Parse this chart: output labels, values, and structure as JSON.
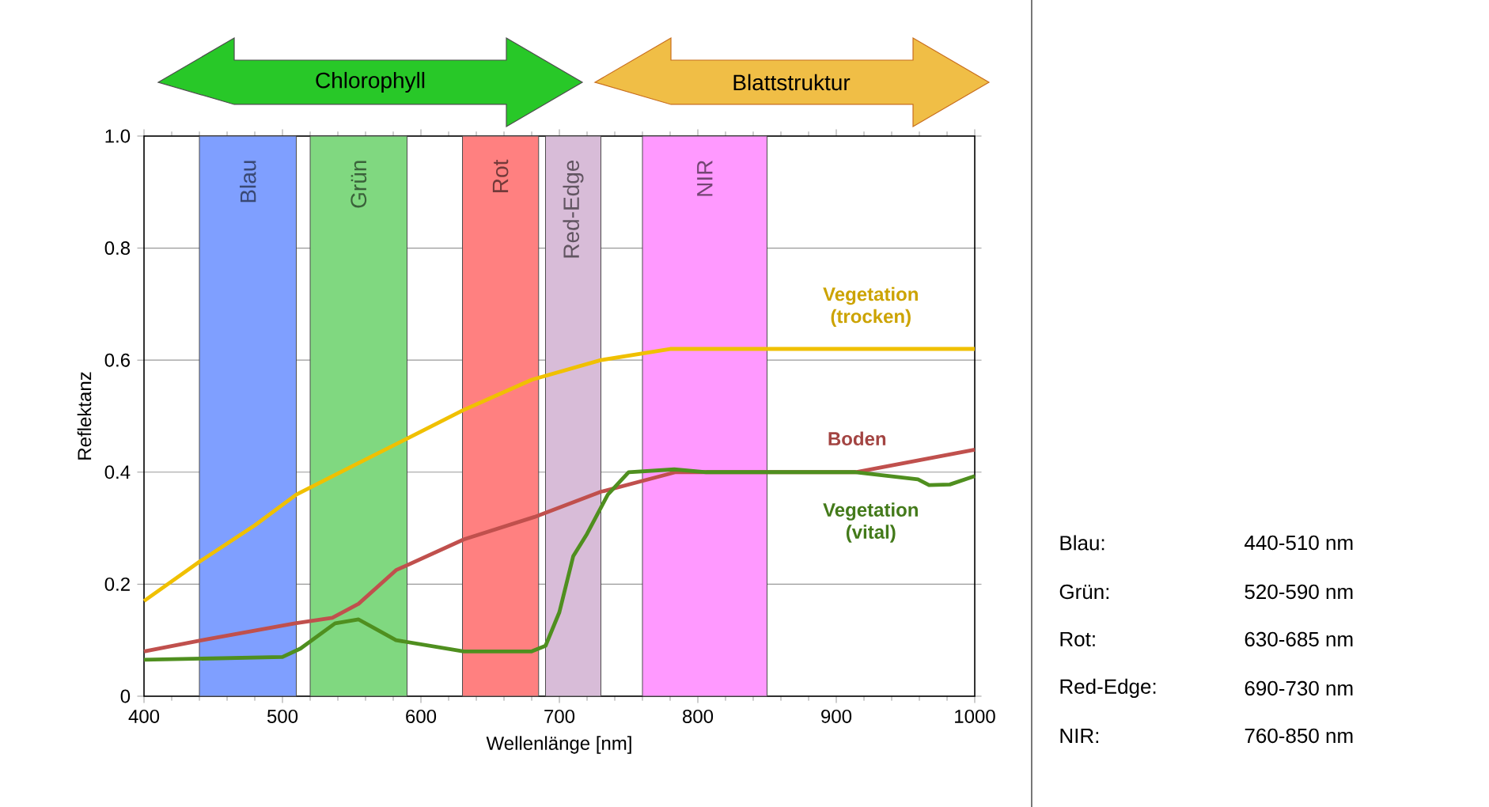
{
  "chart_data": {
    "type": "line",
    "xlabel": "Wellenlänge [nm]",
    "ylabel": "Reflektanz",
    "xlim": [
      400,
      1000
    ],
    "ylim": [
      0,
      1
    ],
    "xticks": [
      400,
      500,
      600,
      700,
      800,
      900,
      1000
    ],
    "yticks": [
      0,
      0.2,
      0.4,
      0.6,
      0.8,
      {
        "value": 1,
        "label": "1.0"
      }
    ],
    "grid": "y",
    "line_style": "solid",
    "bands": [
      {
        "axis": "x",
        "from": 440,
        "to": 510,
        "label": "Blau",
        "color": "#7f9fff"
      },
      {
        "axis": "x",
        "from": 520,
        "to": 590,
        "label": "Grün",
        "color": "#80d880"
      },
      {
        "axis": "x",
        "from": 630,
        "to": 685,
        "label": "Rot",
        "color": "#ff8080"
      },
      {
        "axis": "x",
        "from": 690,
        "to": 730,
        "label": "Red-Edge",
        "color": "#d8bcd8"
      },
      {
        "axis": "x",
        "from": 760,
        "to": 850,
        "label": "NIR",
        "color": "#ff99ff"
      }
    ],
    "series": [
      {
        "name": "Vegetation (trocken)",
        "color": "#f0c000",
        "x": [
          400,
          440,
          480,
          510,
          550,
          590,
          630,
          680,
          730,
          780,
          850,
          1000
        ],
        "values": [
          0.17,
          0.24,
          0.305,
          0.36,
          0.41,
          0.46,
          0.51,
          0.565,
          0.6,
          0.62,
          0.62,
          0.62
        ]
      },
      {
        "name": "Boden",
        "color": "#c0504d",
        "x": [
          400,
          442,
          464,
          509,
          536,
          555,
          582,
          631,
          682,
          730,
          784,
          914,
          1000
        ],
        "values": [
          0.08,
          0.1,
          0.11,
          0.13,
          0.14,
          0.165,
          0.225,
          0.28,
          0.32,
          0.365,
          0.4,
          0.4,
          0.44
        ]
      },
      {
        "name": "Vegetation (vital)",
        "color": "#4f8f1f",
        "x": [
          400,
          500,
          513,
          538,
          555,
          566,
          582,
          631,
          680,
          690,
          700,
          710,
          720,
          735,
          750,
          783,
          806,
          914,
          959,
          967,
          982,
          1000
        ],
        "values": [
          0.065,
          0.07,
          0.085,
          0.13,
          0.137,
          0.122,
          0.1,
          0.08,
          0.08,
          0.09,
          0.15,
          0.25,
          0.29,
          0.36,
          0.4,
          0.405,
          0.4,
          0.4,
          0.387,
          0.377,
          0.378,
          0.393
        ]
      }
    ],
    "annotations": [
      "Chlorophyll",
      "Blattstruktur",
      "Blau:",
      "440-510 nm",
      "Grün:",
      "520-590 nm",
      "Rot:",
      "630-685 nm",
      "Red-Edge:",
      "690-730 nm",
      "NIR:",
      "760-850 nm"
    ]
  }
}
